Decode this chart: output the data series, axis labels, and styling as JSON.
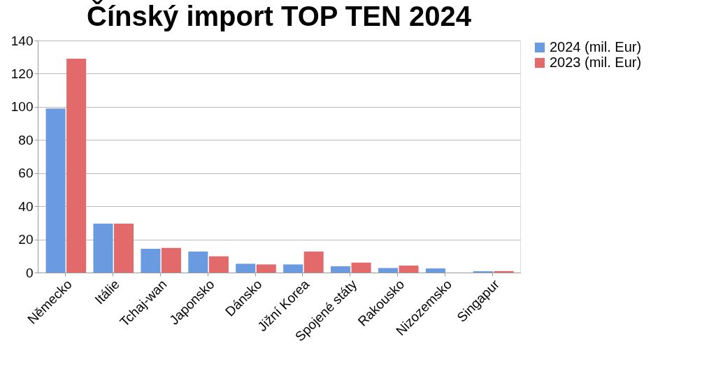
{
  "chart_data": {
    "type": "bar",
    "title": "Čínský import TOP TEN 2024",
    "categories": [
      "Německo",
      "Itálie",
      "Tchaj-wan",
      "Japonsko",
      "Dánsko",
      "Jižní Korea",
      "Spojené státy",
      "Rakousko",
      "Nizozemsko",
      "Singapur"
    ],
    "series": [
      {
        "name": "2024 (mil. Eur)",
        "color": "#6a9be0",
        "values": [
          99,
          29.5,
          14.3,
          12.7,
          5.3,
          4.9,
          3.8,
          2.7,
          2.5,
          0.8
        ]
      },
      {
        "name": "2023 (mil. Eur)",
        "color": "#e36a6a",
        "values": [
          129,
          29.5,
          14.9,
          9.8,
          4.9,
          12.7,
          6.0,
          4.2,
          null,
          0.9
        ]
      }
    ],
    "ylim": [
      0,
      140
    ],
    "yticks": [
      0,
      20,
      40,
      60,
      80,
      100,
      120,
      140
    ],
    "grid": "y",
    "legend": "right"
  }
}
